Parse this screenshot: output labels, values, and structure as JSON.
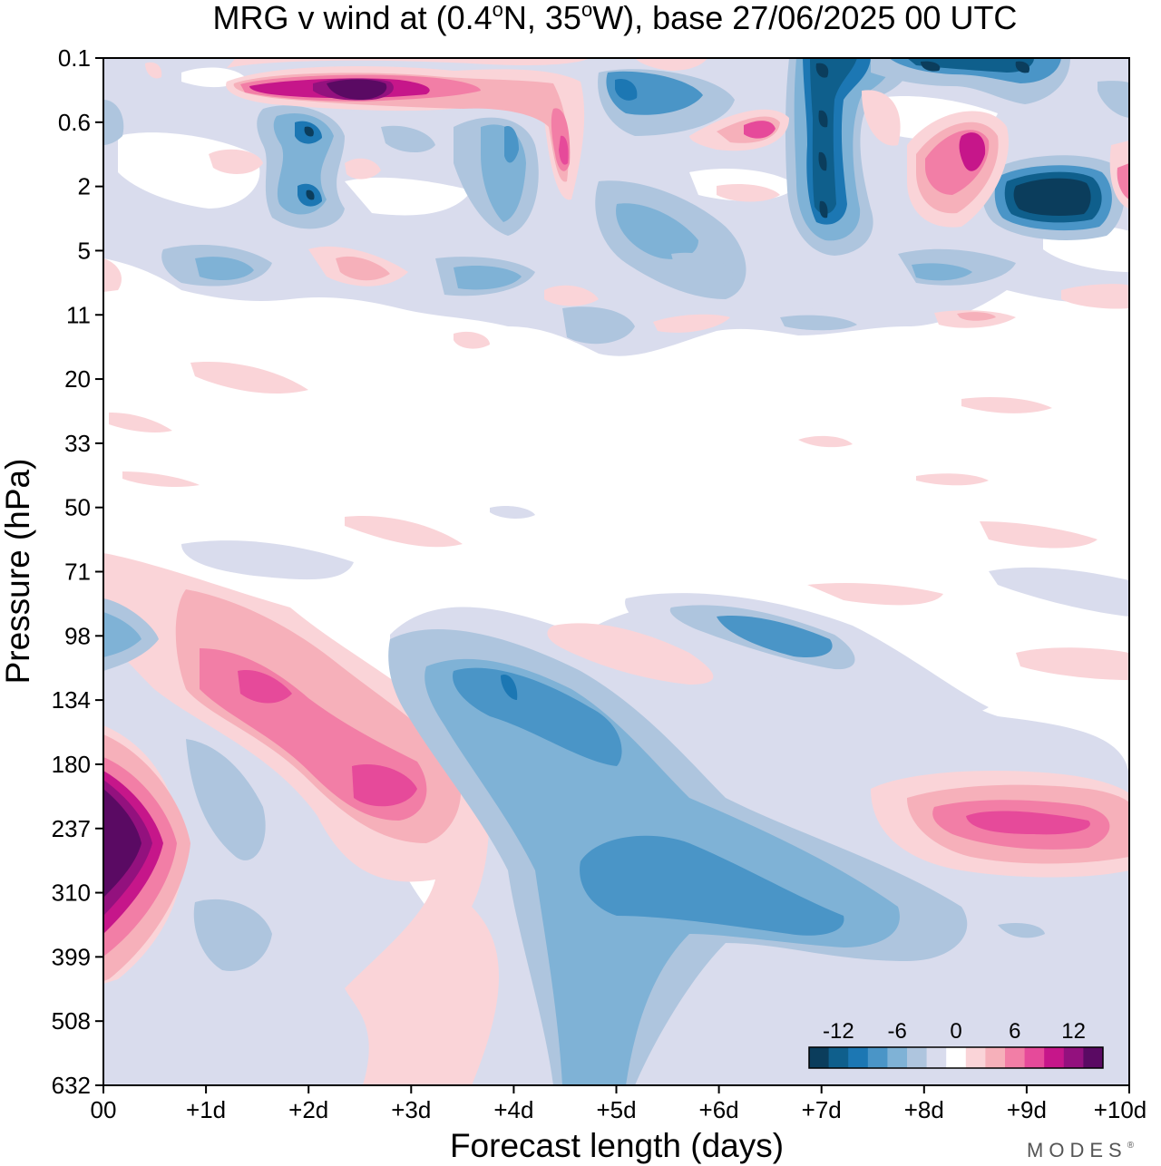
{
  "chart_data": {
    "type": "heatmap",
    "subtype": "filled-contour",
    "title": "MRG v wind at (0.4°N, 35°W),  base 27/06/2025  00 UTC",
    "title_parts": {
      "a": "MRG v wind at (0.4",
      "deg1": "o",
      "b": "N, 35",
      "deg2": "o",
      "c": "W),  base 27/06/2025  00 UTC"
    },
    "xlabel": "Forecast length (days)",
    "ylabel": "Pressure (hPa)",
    "x_ticks": [
      "00",
      "+1d",
      "+2d",
      "+3d",
      "+4d",
      "+5d",
      "+6d",
      "+7d",
      "+8d",
      "+9d",
      "+10d"
    ],
    "xlim": [
      0,
      10
    ],
    "y_ticks": [
      "0.1",
      "0.6",
      "2",
      "5",
      "11",
      "20",
      "33",
      "50",
      "71",
      "98",
      "134",
      "180",
      "237",
      "310",
      "399",
      "508",
      "632"
    ],
    "y_axis_inverted": true,
    "colorbar": {
      "placement": "bottom-right",
      "labels": [
        "-12",
        "-6",
        "0",
        "6",
        "12"
      ],
      "levels": [
        -15,
        -13,
        -11,
        -9,
        -7,
        -5,
        -3,
        -1,
        1,
        3,
        5,
        7,
        9,
        11,
        13,
        15
      ],
      "colors": [
        "#0b3d5c",
        "#0f5f8c",
        "#1c77b3",
        "#4a95c7",
        "#7fb2d6",
        "#aec5de",
        "#d9dced",
        "#ffffff",
        "#fad4d8",
        "#f6b0ba",
        "#f27ea6",
        "#e64a9a",
        "#c6168a",
        "#93117e",
        "#5a0a63"
      ]
    },
    "features": [
      {
        "region": "surface max near 237 hPa at 00",
        "x": 0.2,
        "y": "237",
        "value": 15
      },
      {
        "region": "positive band +1d..+3d around 134-237 hPa",
        "x": 2.3,
        "y": "180",
        "value": 9
      },
      {
        "region": "negative band +4d..+8d around 134-399 hPa",
        "x": 5.5,
        "y": "310",
        "value": -7
      },
      {
        "region": "positive patch +8.5d..+10d near 237 hPa",
        "x": 9.2,
        "y": "237",
        "value": 9
      },
      {
        "region": "stratospheric positive near 0.1-0.6 hPa at +2.5d",
        "x": 2.5,
        "y": "0.3",
        "value": 15
      },
      {
        "region": "stratospheric negative near 2 hPa at +9.3d",
        "x": 9.3,
        "y": "2",
        "value": -15
      }
    ],
    "grid": false
  },
  "brand": "MODES",
  "brand_mark": "®"
}
